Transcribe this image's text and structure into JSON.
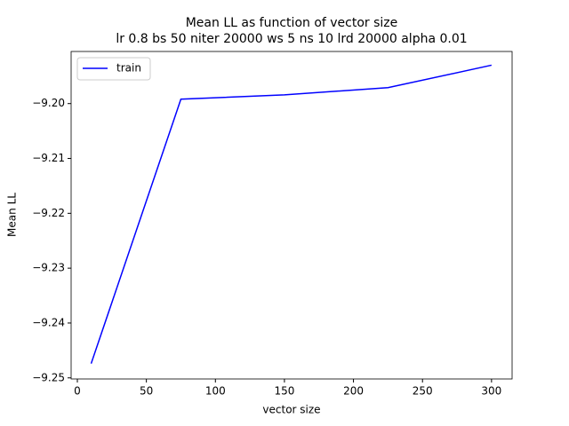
{
  "chart_data": {
    "type": "line",
    "title": "Mean LL as function of vector size",
    "subtitle": "lr 0.8 bs 50 niter 20000 ws 5 ns 10 lrd 20000 alpha 0.01",
    "x_label": "vector size",
    "y_label": "Mean LL",
    "x": [
      10,
      75,
      150,
      225,
      300
    ],
    "series": [
      {
        "name": "train",
        "color": "#0000ff",
        "values": [
          -9.2474,
          -9.1992,
          -9.1984,
          -9.1971,
          -9.193
        ]
      }
    ],
    "xlim": [
      -4.5,
      314.9
    ],
    "ylim": [
      -9.2502,
      -9.1905
    ],
    "xticks": [
      0,
      50,
      100,
      150,
      200,
      250,
      300
    ],
    "yticks": [
      {
        "value": -9.25,
        "label": "−9.25"
      },
      {
        "value": -9.24,
        "label": "−9.24"
      },
      {
        "value": -9.23,
        "label": "−9.23"
      },
      {
        "value": -9.22,
        "label": "−9.22"
      },
      {
        "value": -9.21,
        "label": "−9.21"
      },
      {
        "value": -9.2,
        "label": "−9.20"
      }
    ],
    "legend": "upper left"
  }
}
